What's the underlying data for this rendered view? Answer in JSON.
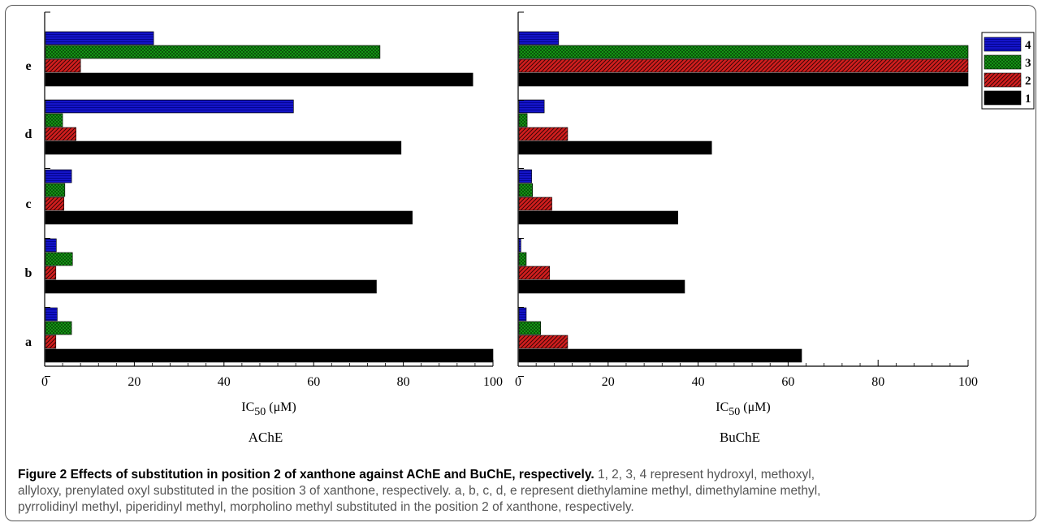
{
  "chart_data": [
    {
      "type": "bar",
      "orientation": "horizontal",
      "categories": [
        "a",
        "b",
        "c",
        "d",
        "e"
      ],
      "series": [
        {
          "name": "1",
          "values": [
            100,
            74,
            82,
            79.5,
            95.5
          ]
        },
        {
          "name": "2",
          "values": [
            2.5,
            2.5,
            4.3,
            7,
            8
          ]
        },
        {
          "name": "3",
          "values": [
            6,
            6.2,
            4.5,
            4,
            74.8
          ]
        },
        {
          "name": "4",
          "values": [
            2.8,
            2.6,
            6,
            55.5,
            24.3
          ]
        }
      ],
      "xlim": [
        0,
        100
      ],
      "xticks": [
        "0",
        "20",
        "40",
        "60",
        "80",
        "100"
      ],
      "xlabel_main": "IC",
      "xlabel_sub": "50",
      "xlabel_unit": " (μM)",
      "title": "AChE"
    },
    {
      "type": "bar",
      "orientation": "horizontal",
      "categories": [
        "a",
        "b",
        "c",
        "d",
        "e"
      ],
      "series": [
        {
          "name": "1",
          "values": [
            63,
            37,
            35.5,
            43,
            100
          ]
        },
        {
          "name": "2",
          "values": [
            11,
            7,
            7.5,
            11,
            100
          ]
        },
        {
          "name": "3",
          "values": [
            5,
            1.8,
            3.2,
            2,
            100
          ]
        },
        {
          "name": "4",
          "values": [
            1.8,
            0.6,
            3,
            5.8,
            9
          ]
        }
      ],
      "xlim": [
        0,
        100
      ],
      "xticks": [
        "0",
        "20",
        "40",
        "60",
        "80",
        "100"
      ],
      "xlabel_main": "IC",
      "xlabel_sub": "50",
      "xlabel_unit": " (μM)",
      "title": "BuChE"
    }
  ],
  "legend": {
    "placement": "top-right",
    "entries": [
      {
        "label": "4",
        "color": "#1414c8",
        "pattern": "hlines"
      },
      {
        "label": "3",
        "color": "#16a016",
        "pattern": "cross"
      },
      {
        "label": "2",
        "color": "#d21e1e",
        "pattern": "diag"
      },
      {
        "label": "1",
        "color": "#000000",
        "pattern": "solid"
      }
    ]
  },
  "caption": {
    "title": "Figure 2 Effects of substitution in position 2 of xanthone against AChE and BuChE, respectively.",
    "line1": "1, 2, 3, 4 represent hydroxyl, methoxyl,",
    "line2": "allyloxy, prenylated oxyl substituted in the position 3 of xanthone, respectively. a, b, c, d, e represent diethylamine methyl, dimethylamine methyl,",
    "line3": "pyrrolidinyl methyl, piperidinyl methyl, morpholino methyl substituted in the position 2 of xanthone, respectively."
  }
}
